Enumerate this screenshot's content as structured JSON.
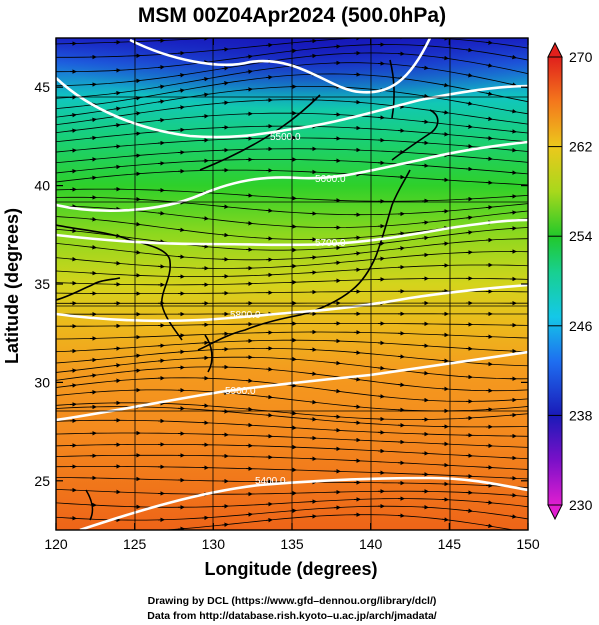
{
  "title": "MSM 00Z04Apr2024 (500.0hPa)",
  "xlabel": "Longitude (degrees)",
  "ylabel": "Latitude  (degrees)",
  "x_ticks": [
    "120",
    "125",
    "130",
    "135",
    "140",
    "145",
    "150"
  ],
  "y_ticks": [
    "25",
    "30",
    "35",
    "40",
    "45"
  ],
  "colorbar": {
    "ticks": [
      "230",
      "238",
      "246",
      "254",
      "262",
      "270"
    ],
    "min": 230,
    "max": 270
  },
  "contours": [
    {
      "label": "5400.0"
    },
    {
      "label": "5500.0"
    },
    {
      "label": "5600.0"
    },
    {
      "label": "5700.0"
    },
    {
      "label": "5800.0"
    },
    {
      "label": "5900.0"
    }
  ],
  "credits": {
    "line1": "Drawing by DCL (https://www.gfd–dennou.org/library/dcl/)",
    "line2": "Data from http://database.rish.kyoto–u.ac.jp/arch/jmadata/"
  },
  "map": {
    "lon_range": [
      120,
      150
    ],
    "lat_range": [
      22.5,
      47.5
    ],
    "field": "temperature (K)",
    "vectors": "wind streamlines"
  },
  "colors": {
    "cold": "#1a22c8",
    "mid": "#22c82a",
    "warm": "#f07018"
  }
}
